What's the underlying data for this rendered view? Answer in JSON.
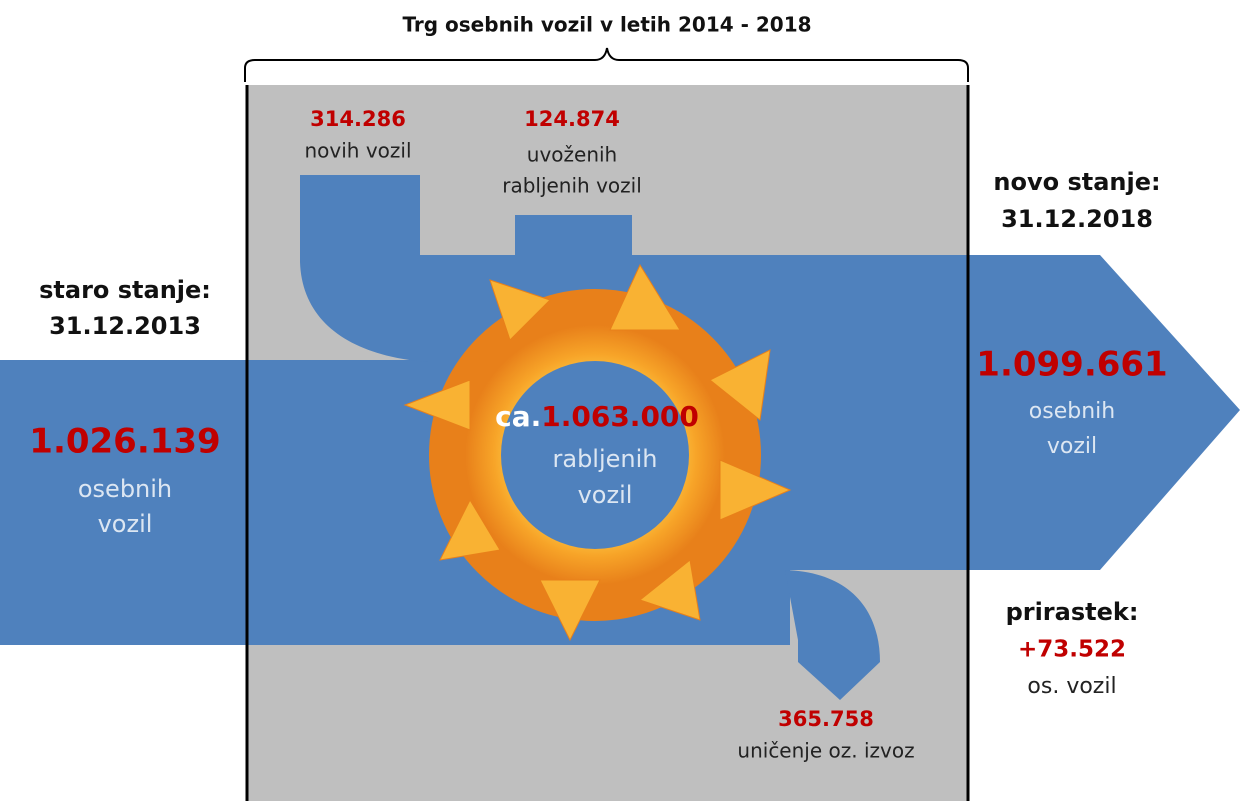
{
  "title": "Trg osebnih vozil v letih 2014 - 2018",
  "old_stock": {
    "label": "staro stanje:",
    "date": "31.12.2013",
    "value": "1.026.139",
    "unit": [
      "osebnih",
      "vozil"
    ]
  },
  "new_stock": {
    "label": "novo stanje:",
    "date": "31.12.2018",
    "value": "1.099.661",
    "unit": [
      "osebnih",
      "vozil"
    ]
  },
  "new_vehicles": {
    "value": "314.286",
    "label": "novih vozil"
  },
  "imported_used": {
    "value": "124.874",
    "label": [
      "uvoženih",
      "rabljenih vozil"
    ]
  },
  "scrapped_exported": {
    "value": "365.758",
    "label": "uničenje oz. izvoz"
  },
  "used_market": {
    "prefix": "ca.",
    "value": "1.063.000",
    "label": [
      "rabljenih",
      "vozil"
    ]
  },
  "growth": {
    "label": "prirastek:",
    "value": "+73.522",
    "unit": "os. vozil"
  }
}
